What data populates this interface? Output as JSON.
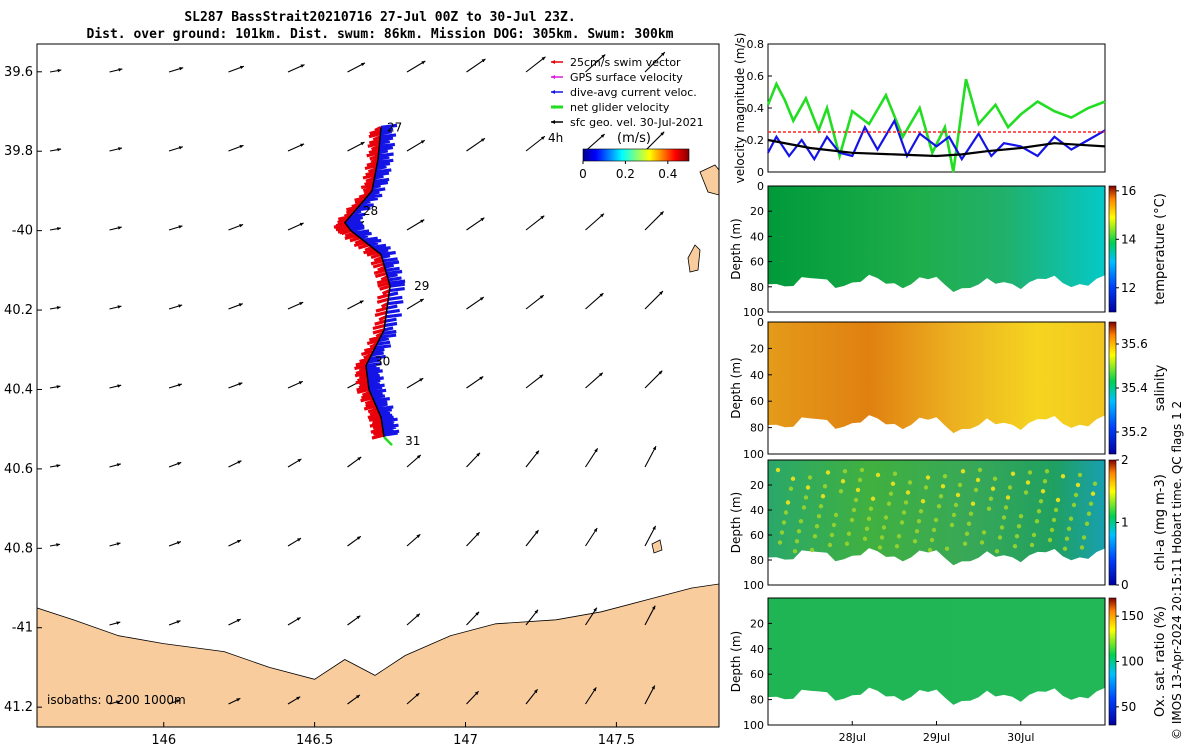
{
  "title": {
    "line1": "SL287 BassStrait20210716 27-Jul 00Z to 30-Jul 23Z.",
    "line2": "Dist. over ground: 101km. Dist. swum: 86km. Mission DOG: 305km. Swum: 300km"
  },
  "credit": "© IMOS 13-Apr-2024 20:15:11 Hobart time. QC flags 1  2",
  "colors": {
    "land": "#f9cc9e",
    "swim": "#e8000b",
    "current": "#1414e6",
    "net": "#22dd22",
    "geo": "#000000",
    "gps": "#d81fd8",
    "redline": "#ff2020"
  },
  "map": {
    "x_ticks": [
      146,
      146.5,
      147,
      147.5
    ],
    "x_tick_labels": [
      "146",
      "146.5",
      "147",
      "147.5"
    ],
    "y_ticks": [
      -39.6,
      -39.8,
      -40,
      -40.2,
      -40.4,
      -40.6,
      -40.8,
      -41,
      -41.2
    ],
    "y_tick_labels": [
      "39.6",
      "39.8",
      "-40",
      "40.2",
      "40.4",
      "40.6",
      "40.8",
      "-41",
      "41.2"
    ],
    "xlim": [
      145.58,
      147.84
    ],
    "ylim": [
      -41.25,
      -39.53
    ],
    "isobaths_label": "isobaths: 0   200  1000m",
    "legend": [
      {
        "label": "25cm/s swim vector",
        "color": "#e8000b"
      },
      {
        "label": "GPS surface velocity",
        "color": "#d81fd8"
      },
      {
        "label": "dive-avg current veloc.",
        "color": "#1414e6"
      },
      {
        "label": "net glider velocity",
        "color": "#22dd22"
      },
      {
        "label": "sfc geo. vel. 30-Jul-2021",
        "color": "#000000"
      }
    ],
    "colorbar": {
      "label": "(m/s)",
      "unit_label": "4h",
      "ticks": [
        "0",
        "0.2",
        "0.4"
      ],
      "range": [
        0,
        0.5
      ]
    },
    "track_days": [
      {
        "label": "27",
        "lon": 146.72,
        "lat": -39.74
      },
      {
        "label": "28",
        "lon": 146.64,
        "lat": -39.95
      },
      {
        "label": "29",
        "lon": 146.81,
        "lat": -40.14
      },
      {
        "label": "30",
        "lon": 146.68,
        "lat": -40.33
      },
      {
        "label": "31",
        "lon": 146.78,
        "lat": -40.53
      }
    ],
    "track": [
      [
        146.72,
        -39.74
      ],
      [
        146.71,
        -39.82
      ],
      [
        146.69,
        -39.9
      ],
      [
        146.6,
        -39.98
      ],
      [
        146.62,
        -40.0
      ],
      [
        146.72,
        -40.06
      ],
      [
        146.75,
        -40.14
      ],
      [
        146.73,
        -40.25
      ],
      [
        146.67,
        -40.34
      ],
      [
        146.68,
        -40.4
      ],
      [
        146.72,
        -40.47
      ],
      [
        146.73,
        -40.52
      ]
    ]
  },
  "chart_data": [
    {
      "type": "line",
      "ylabel": "velocity magnitude (m/s)",
      "ylim": [
        0,
        0.8
      ],
      "yticks": [
        "0",
        "0.2",
        "0.4",
        "0.6",
        "0.8"
      ],
      "x_days": [
        27,
        28,
        29,
        30,
        31
      ],
      "series": [
        {
          "color": "#22dd22",
          "x": [
            27.0,
            27.1,
            27.2,
            27.3,
            27.45,
            27.6,
            27.7,
            27.85,
            28.0,
            28.2,
            28.4,
            28.6,
            28.8,
            28.95,
            29.1,
            29.2,
            29.35,
            29.5,
            29.7,
            29.85,
            30.0,
            30.2,
            30.4,
            30.6,
            30.8,
            31.0
          ],
          "y": [
            0.42,
            0.55,
            0.45,
            0.32,
            0.46,
            0.26,
            0.4,
            0.1,
            0.38,
            0.3,
            0.48,
            0.22,
            0.4,
            0.12,
            0.28,
            0.0,
            0.58,
            0.3,
            0.42,
            0.28,
            0.36,
            0.44,
            0.38,
            0.34,
            0.4,
            0.44
          ]
        },
        {
          "color": "#1414e6",
          "x": [
            27.0,
            27.1,
            27.25,
            27.4,
            27.55,
            27.7,
            27.85,
            28.0,
            28.15,
            28.3,
            28.5,
            28.65,
            28.8,
            29.0,
            29.15,
            29.3,
            29.5,
            29.65,
            29.8,
            30.0,
            30.2,
            30.4,
            30.6,
            30.8,
            31.0
          ],
          "y": [
            0.12,
            0.22,
            0.1,
            0.2,
            0.08,
            0.22,
            0.12,
            0.1,
            0.28,
            0.14,
            0.32,
            0.1,
            0.24,
            0.16,
            0.22,
            0.08,
            0.24,
            0.1,
            0.18,
            0.16,
            0.1,
            0.22,
            0.14,
            0.2,
            0.26
          ]
        },
        {
          "color": "#000000",
          "x": [
            27.0,
            27.5,
            28.0,
            28.5,
            29.0,
            29.3,
            29.6,
            30.0,
            30.4,
            30.7,
            31.0
          ],
          "y": [
            0.2,
            0.15,
            0.12,
            0.11,
            0.1,
            0.11,
            0.13,
            0.15,
            0.18,
            0.17,
            0.16
          ]
        },
        {
          "color": "#ff2020",
          "x": [
            27.0,
            31.0
          ],
          "y": [
            0.25,
            0.25
          ]
        }
      ]
    },
    {
      "type": "heatmap",
      "ylabel": "Depth (m)",
      "cbar_label": "temperature (°C)",
      "cbar_ticks": [
        "12",
        "14",
        "16"
      ],
      "cbar_range": [
        11,
        16.2
      ],
      "ylim": [
        0,
        100
      ],
      "yticks": [
        "0",
        "20",
        "40",
        "60",
        "80",
        "100"
      ]
    },
    {
      "type": "heatmap",
      "ylabel": "Depth (m)",
      "cbar_label": "salinity",
      "cbar_ticks": [
        "35.2",
        "35.4",
        "35.6"
      ],
      "cbar_range": [
        35.1,
        35.7
      ],
      "ylim": [
        0,
        100
      ],
      "yticks": [
        "0",
        "20",
        "40",
        "60",
        "80",
        "100"
      ]
    },
    {
      "type": "heatmap",
      "ylabel": "Depth (m)",
      "cbar_label": "chl-a (mg m-3)",
      "cbar_ticks": [
        "0",
        "1",
        "2"
      ],
      "cbar_range": [
        0,
        2
      ],
      "ylim": [
        0,
        100
      ],
      "yticks": [
        "20",
        "40",
        "60",
        "80",
        "100"
      ]
    },
    {
      "type": "heatmap",
      "ylabel": "Depth (m)",
      "cbar_label": "Ox. sat. ratio (%)",
      "cbar_ticks": [
        "50",
        "100",
        "150"
      ],
      "cbar_range": [
        30,
        170
      ],
      "ylim": [
        0,
        100
      ],
      "yticks": [
        "20",
        "40",
        "60",
        "80",
        "100"
      ],
      "x_tick_labels": [
        "28Jul",
        "29Jul",
        "30Jul"
      ]
    }
  ]
}
